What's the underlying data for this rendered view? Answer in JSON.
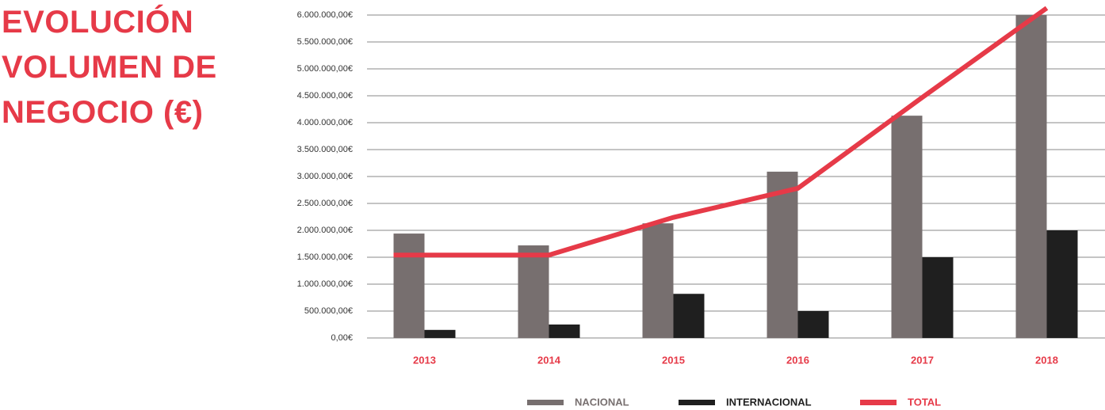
{
  "chart_data": {
    "type": "bar",
    "title": "EVOLUCIÓN VOLUMEN DE NEGOCIO (€)",
    "categories": [
      "2013",
      "2014",
      "2015",
      "2016",
      "2017",
      "2018"
    ],
    "series": [
      {
        "name": "NACIONAL",
        "color": "#776f6f",
        "values": [
          1940000,
          1720000,
          2130000,
          3090000,
          4130000,
          6000000
        ]
      },
      {
        "name": "INTERNACIONAL",
        "color": "#1f1f1f",
        "values": [
          150000,
          250000,
          820000,
          500000,
          1500000,
          2000000
        ]
      },
      {
        "name": "TOTAL",
        "type": "line",
        "color": "#e63a48",
        "values": [
          1540000,
          1540000,
          2240000,
          2780000,
          4470000,
          6130000
        ]
      }
    ],
    "ylim": [
      0,
      6000000
    ],
    "yticks": [
      {
        "value": 0,
        "label": "0,00€"
      },
      {
        "value": 500000,
        "label": "500.000,00€"
      },
      {
        "value": 1000000,
        "label": "1.000.000,00€"
      },
      {
        "value": 1500000,
        "label": "1.500.000,00€"
      },
      {
        "value": 2000000,
        "label": "2.000.000,00€"
      },
      {
        "value": 2500000,
        "label": "2.500.000,00€"
      },
      {
        "value": 3000000,
        "label": "3.000.000,00€"
      },
      {
        "value": 3500000,
        "label": "3.500.000,00€"
      },
      {
        "value": 4000000,
        "label": "4.000.000,00€"
      },
      {
        "value": 4500000,
        "label": "4.500.000,00€"
      },
      {
        "value": 5000000,
        "label": "5.000.000,00€"
      },
      {
        "value": 5500000,
        "label": "5.500.000,00€"
      },
      {
        "value": 6000000,
        "label": "6.000.000,00€"
      }
    ],
    "grid": true
  }
}
